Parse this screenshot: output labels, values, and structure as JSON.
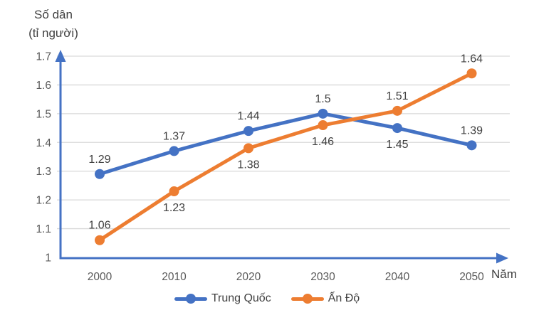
{
  "chart_data": {
    "type": "line",
    "y_axis_title": [
      "Số dân",
      "(tỉ người)"
    ],
    "x_axis_title": "Năm",
    "categories": [
      "2000",
      "2010",
      "2020",
      "2030",
      "2040",
      "2050"
    ],
    "y_ticks": [
      "1",
      "1.1",
      "1.2",
      "1.3",
      "1.4",
      "1.5",
      "1.6",
      "1.7"
    ],
    "ylim": [
      1.0,
      1.7
    ],
    "grid": true,
    "legend_position": "bottom",
    "axis_color": "#4472C4",
    "gridline_color": "#D9D9D9",
    "data_label_color": "#404040",
    "tick_label_color": "#595959",
    "series": [
      {
        "name": "Trung Quốc",
        "color": "#4472C4",
        "values": [
          1.29,
          1.37,
          1.44,
          1.5,
          1.45,
          1.39
        ],
        "labels": [
          "1.29",
          "1.37",
          "1.44",
          "1.5",
          "1.45",
          "1.39"
        ],
        "label_sides": [
          "above",
          "above",
          "above",
          "above",
          "below",
          "above"
        ]
      },
      {
        "name": "Ấn Độ",
        "color": "#ED7D31",
        "values": [
          1.06,
          1.23,
          1.38,
          1.46,
          1.51,
          1.64
        ],
        "labels": [
          "1.06",
          "1.23",
          "1.38",
          "1.46",
          "1.51",
          "1.64"
        ],
        "label_sides": [
          "above",
          "below",
          "below",
          "below",
          "above",
          "above"
        ]
      }
    ]
  }
}
